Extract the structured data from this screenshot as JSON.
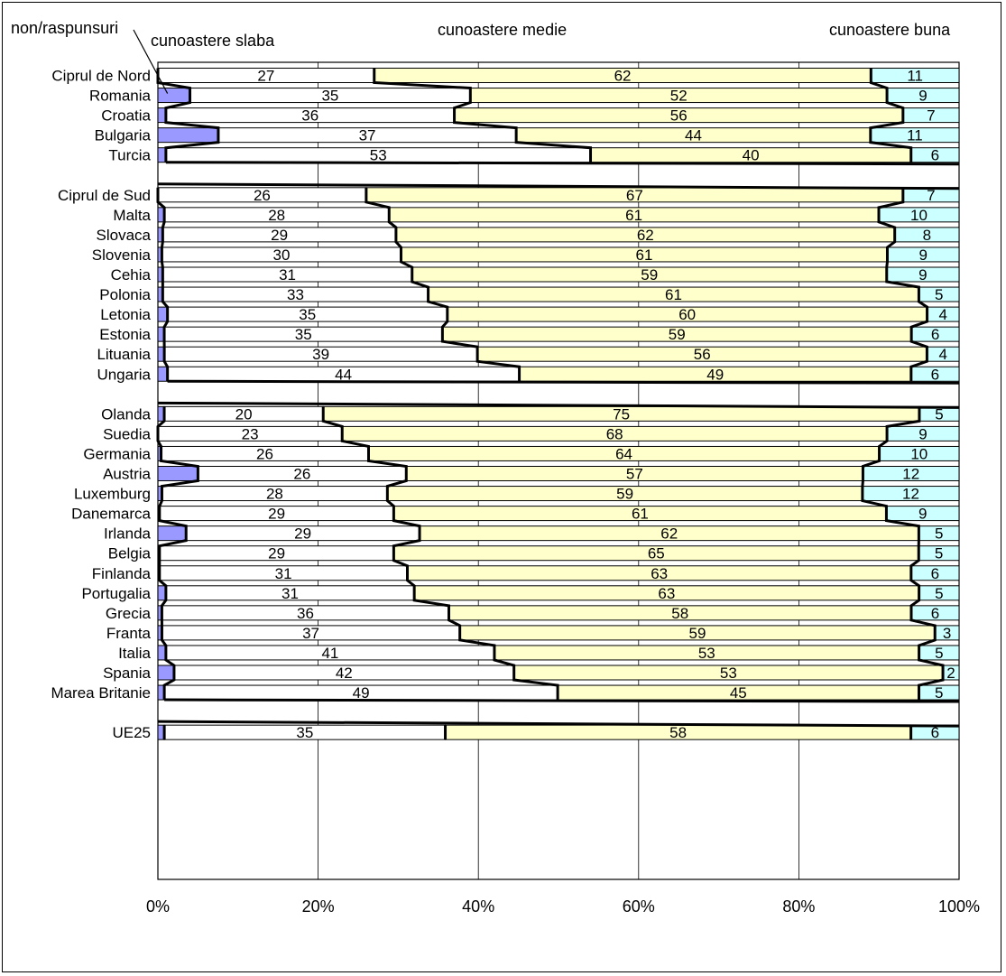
{
  "chart_data": {
    "type": "bar",
    "stacked": "100%",
    "orientation": "horizontal",
    "title": "",
    "xlabel": "",
    "ylabel": "",
    "xlim": [
      0,
      100
    ],
    "x_tick_labels": [
      "0%",
      "20%",
      "40%",
      "60%",
      "80%",
      "100%"
    ],
    "grid": true,
    "legend_labels": {
      "non": "non/raspunsuri",
      "slaba": "cunoastere slaba",
      "medie": "cunoastere medie",
      "buna": "cunoastere buna"
    },
    "colors": {
      "non": "#9999ff",
      "slaba": "#ffffff",
      "medie": "#ffffcc",
      "buna": "#ccffff",
      "series_line": "#000000",
      "grid": "#000000"
    },
    "groups": [
      {
        "rows": [
          {
            "category": "Ciprul de Nord",
            "non": 0,
            "slaba": 27,
            "medie": 62,
            "buna": 11
          },
          {
            "category": "Romania",
            "non": 4,
            "slaba": 35,
            "medie": 52,
            "buna": 9
          },
          {
            "category": "Croatia",
            "non": 1,
            "slaba": 36,
            "medie": 56,
            "buna": 7
          },
          {
            "category": "Bulgaria",
            "non": 7.5,
            "slaba": 37,
            "medie": 44,
            "buna": 11
          },
          {
            "category": "Turcia",
            "non": 1,
            "slaba": 53,
            "medie": 40,
            "buna": 6
          }
        ]
      },
      {
        "rows": [
          {
            "category": "Ciprul de Sud",
            "non": 0,
            "slaba": 26,
            "medie": 67,
            "buna": 7
          },
          {
            "category": "Malta",
            "non": 0.8,
            "slaba": 28,
            "medie": 61,
            "buna": 10
          },
          {
            "category": "Slovaca",
            "non": 0.6,
            "slaba": 29,
            "medie": 62,
            "buna": 8
          },
          {
            "category": "Slovenia",
            "non": 0.5,
            "slaba": 30,
            "medie": 61,
            "buna": 9
          },
          {
            "category": "Cehia",
            "non": 0.6,
            "slaba": 31,
            "medie": 59,
            "buna": 9
          },
          {
            "category": "Polonia",
            "non": 0.6,
            "slaba": 33,
            "medie": 61,
            "buna": 5
          },
          {
            "category": "Letonia",
            "non": 1.2,
            "slaba": 35,
            "medie": 60,
            "buna": 4
          },
          {
            "category": "Estonia",
            "non": 0.8,
            "slaba": 35,
            "medie": 59,
            "buna": 6
          },
          {
            "category": "Lituania",
            "non": 0.8,
            "slaba": 39,
            "medie": 56,
            "buna": 4
          },
          {
            "category": "Ungaria",
            "non": 1.2,
            "slaba": 44,
            "medie": 49,
            "buna": 6
          }
        ]
      },
      {
        "rows": [
          {
            "category": "Olanda",
            "non": 0.8,
            "slaba": 20,
            "medie": 75,
            "buna": 5
          },
          {
            "category": "Suedia",
            "non": 0,
            "slaba": 23,
            "medie": 68,
            "buna": 9
          },
          {
            "category": "Germania",
            "non": 0.4,
            "slaba": 26,
            "medie": 64,
            "buna": 10
          },
          {
            "category": "Austria",
            "non": 5,
            "slaba": 26,
            "medie": 57,
            "buna": 12
          },
          {
            "category": "Luxemburg",
            "non": 0.5,
            "slaba": 28,
            "medie": 59,
            "buna": 12
          },
          {
            "category": "Danemarca",
            "non": 0.2,
            "slaba": 29,
            "medie": 61,
            "buna": 9
          },
          {
            "category": "Irlanda",
            "non": 3.5,
            "slaba": 29,
            "medie": 62,
            "buna": 5
          },
          {
            "category": "Belgia",
            "non": 0.2,
            "slaba": 29,
            "medie": 65,
            "buna": 5
          },
          {
            "category": "Finlanda",
            "non": 0.2,
            "slaba": 31,
            "medie": 63,
            "buna": 6
          },
          {
            "category": "Portugalia",
            "non": 1,
            "slaba": 31,
            "medie": 63,
            "buna": 5
          },
          {
            "category": "Grecia",
            "non": 0.5,
            "slaba": 36,
            "medie": 58,
            "buna": 6
          },
          {
            "category": "Franta",
            "non": 0.5,
            "slaba": 37,
            "medie": 59,
            "buna": 3
          },
          {
            "category": "Italia",
            "non": 1,
            "slaba": 41,
            "medie": 53,
            "buna": 5
          },
          {
            "category": "Spania",
            "non": 2,
            "slaba": 42,
            "medie": 53,
            "buna": 2
          },
          {
            "category": "Marea Britanie",
            "non": 0.8,
            "slaba": 49,
            "medie": 45,
            "buna": 5
          }
        ]
      },
      {
        "rows": [
          {
            "category": "UE25",
            "non": 0.8,
            "slaba": 35,
            "medie": 58,
            "buna": 6
          }
        ]
      }
    ]
  }
}
